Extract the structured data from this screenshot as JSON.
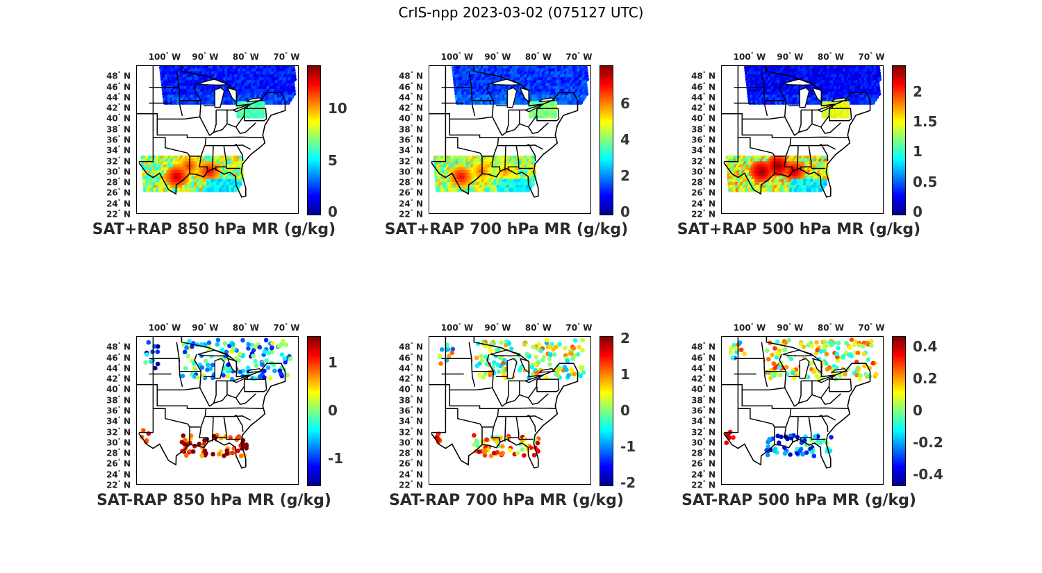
{
  "figure": {
    "title": "CrIS-npp 2023-03-02 (075127 UTC)"
  },
  "axes": {
    "lon_ticks": [
      {
        "value": -100,
        "label": "100",
        "suffix": "W"
      },
      {
        "value": -90,
        "label": "90",
        "suffix": "W"
      },
      {
        "value": -80,
        "label": "80",
        "suffix": "W"
      },
      {
        "value": -70,
        "label": "70",
        "suffix": "W"
      }
    ],
    "lat_ticks": [
      {
        "value": 48,
        "label": "48",
        "suffix": "N"
      },
      {
        "value": 46,
        "label": "46",
        "suffix": "N"
      },
      {
        "value": 44,
        "label": "44",
        "suffix": "N"
      },
      {
        "value": 42,
        "label": "42",
        "suffix": "N"
      },
      {
        "value": 40,
        "label": "40",
        "suffix": "N"
      },
      {
        "value": 38,
        "label": "38",
        "suffix": "N"
      },
      {
        "value": 36,
        "label": "36",
        "suffix": "N"
      },
      {
        "value": 34,
        "label": "34",
        "suffix": "N"
      },
      {
        "value": 32,
        "label": "32",
        "suffix": "N"
      },
      {
        "value": 30,
        "label": "30",
        "suffix": "N"
      },
      {
        "value": 28,
        "label": "28",
        "suffix": "N"
      },
      {
        "value": 26,
        "label": "26",
        "suffix": "N"
      },
      {
        "value": 24,
        "label": "24",
        "suffix": "N"
      },
      {
        "value": 22,
        "label": "22",
        "suffix": "N"
      }
    ],
    "lon_range": [
      -107,
      -67
    ],
    "lat_range": [
      22,
      50
    ]
  },
  "colormap": [
    "#00008f",
    "#0000ff",
    "#0080ff",
    "#00ffff",
    "#80ff80",
    "#ffff00",
    "#ff8000",
    "#ff0000",
    "#800000"
  ],
  "panels": [
    {
      "title": "SAT+RAP 850 hPa MR (g/kg)",
      "kind": "total",
      "clim": [
        0,
        14
      ],
      "cb_ticks": [
        {
          "value": 0,
          "label": "0"
        },
        {
          "value": 5,
          "label": "5"
        },
        {
          "value": 10,
          "label": "10"
        }
      ],
      "north_level": 0.15,
      "south_level": 0.55,
      "east_box": [
        -82,
        -76,
        40.5,
        43,
        0.45
      ],
      "hot_spots": [
        [
          -97,
          29,
          0.95
        ],
        [
          -89,
          30,
          0.9
        ],
        [
          -94,
          31,
          0.85
        ]
      ]
    },
    {
      "title": "SAT+RAP 700 hPa MR (g/kg)",
      "kind": "total",
      "clim": [
        0,
        8
      ],
      "cb_ticks": [
        {
          "value": 0,
          "label": "0"
        },
        {
          "value": 2,
          "label": "2"
        },
        {
          "value": 4,
          "label": "4"
        },
        {
          "value": 6,
          "label": "6"
        }
      ],
      "north_level": 0.18,
      "south_level": 0.55,
      "east_box": [
        -82,
        -76,
        40.5,
        43,
        0.5
      ],
      "hot_spots": [
        [
          -99,
          29,
          0.9
        ],
        [
          -94,
          30,
          0.8
        ],
        [
          -88,
          30,
          0.75
        ]
      ]
    },
    {
      "title": "SAT+RAP 500 hPa MR (g/kg)",
      "kind": "total",
      "clim": [
        0,
        2.4
      ],
      "cb_ticks": [
        {
          "value": 0,
          "label": "0"
        },
        {
          "value": 0.5,
          "label": "0.5"
        },
        {
          "value": 1,
          "label": "1"
        },
        {
          "value": 1.5,
          "label": "1.5"
        },
        {
          "value": 2,
          "label": "2"
        }
      ],
      "north_level": 0.12,
      "south_level": 0.6,
      "east_box": [
        -82,
        -76,
        40.5,
        43,
        0.6
      ],
      "hot_spots": [
        [
          -97,
          30,
          1.0
        ],
        [
          -93,
          31,
          1.0
        ],
        [
          -89,
          30,
          0.95
        ]
      ]
    },
    {
      "title": "SAT-RAP 850 hPa MR (g/kg)",
      "kind": "diff",
      "clim": [
        -1.5,
        1.5
      ],
      "cb_ticks": [
        {
          "value": -1,
          "label": "-1"
        },
        {
          "value": 0,
          "label": "0"
        },
        {
          "value": 1,
          "label": "1"
        }
      ],
      "north_level": 0.35,
      "south_level": 0.92
    },
    {
      "title": "SAT-RAP 700 hPa MR (g/kg)",
      "kind": "diff",
      "clim": [
        -2,
        2
      ],
      "cb_ticks": [
        {
          "value": -2,
          "label": "-2"
        },
        {
          "value": -1,
          "label": "-1"
        },
        {
          "value": 0,
          "label": "0"
        },
        {
          "value": 1,
          "label": "1"
        },
        {
          "value": 2,
          "label": "2"
        }
      ],
      "north_level": 0.55,
      "south_level": 0.7
    },
    {
      "title": "SAT-RAP 500 hPa MR (g/kg)",
      "kind": "diff",
      "clim": [
        -0.45,
        0.45
      ],
      "cb_ticks": [
        {
          "value": -0.4,
          "label": "-0.4"
        },
        {
          "value": -0.2,
          "label": "-0.2"
        },
        {
          "value": 0,
          "label": "0"
        },
        {
          "value": 0.2,
          "label": "0.2"
        },
        {
          "value": 0.4,
          "label": "0.4"
        }
      ],
      "north_level": 0.6,
      "south_level": 0.3
    }
  ]
}
